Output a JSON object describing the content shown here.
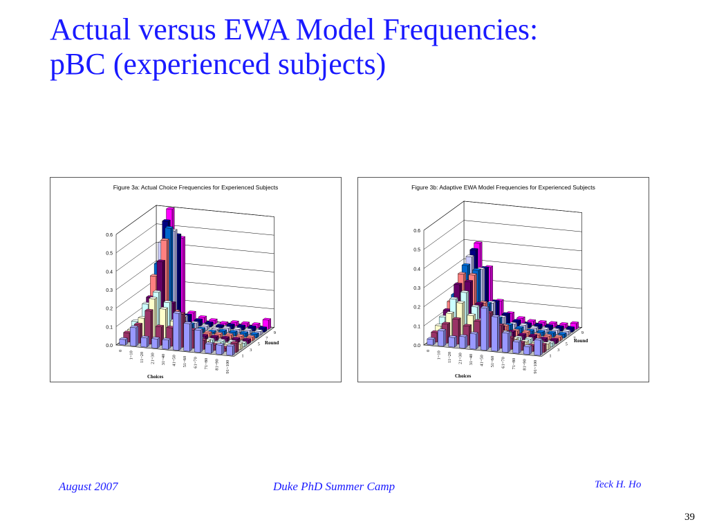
{
  "slide": {
    "title_line1": "Actual versus EWA Model Frequencies:",
    "title_line2": "pBC (experienced subjects)",
    "footer_left": "August 2007",
    "footer_center": "Duke PhD Summer Camp",
    "footer_right": "Teck H. Ho",
    "page_number": "39"
  },
  "chart_data": [
    {
      "type": "bar3d",
      "title": "Figure 3a: Actual Choice Frequencies for Experienced Subjects",
      "xlabel": "Choices",
      "ylabel": "Round",
      "categories": [
        "0",
        "1~10",
        "11~20",
        "21~30",
        "31~40",
        "41~50",
        "51~60",
        "61~70",
        "71~80",
        "81~90",
        "91~100"
      ],
      "rounds": [
        "1",
        "2",
        "3",
        "4",
        "5",
        "6",
        "7",
        "8",
        "9",
        "10"
      ],
      "round_tick_labels": [
        "1",
        "3",
        "5",
        "7",
        "9"
      ],
      "zlim": [
        0,
        0.6
      ],
      "z_ticks": [
        "0.0",
        "0.1",
        "0.2",
        "0.3",
        "0.4",
        "0.5",
        "0.6"
      ],
      "values": [
        [
          0.03,
          0.1,
          0.05,
          0.05,
          0.05,
          0.2,
          0.15,
          0.12,
          0.05,
          0.05,
          0.05
        ],
        [
          0.05,
          0.1,
          0.18,
          0.1,
          0.1,
          0.18,
          0.1,
          0.05,
          0.03,
          0.02,
          0.05
        ],
        [
          0.05,
          0.12,
          0.23,
          0.18,
          0.12,
          0.1,
          0.05,
          0.03,
          0.02,
          0.02,
          0.03
        ],
        [
          0.08,
          0.18,
          0.25,
          0.2,
          0.1,
          0.05,
          0.02,
          0.02,
          0.02,
          0.02,
          0.02
        ],
        [
          0.05,
          0.2,
          0.4,
          0.18,
          0.08,
          0.03,
          0.02,
          0.02,
          0.02,
          0.02,
          0.02
        ],
        [
          0.05,
          0.3,
          0.5,
          0.12,
          0.06,
          0.02,
          0.02,
          0.02,
          0.02,
          0.02,
          0.02
        ],
        [
          0.05,
          0.35,
          0.55,
          0.08,
          0.04,
          0.02,
          0.01,
          0.02,
          0.02,
          0.02,
          0.02
        ],
        [
          0.05,
          0.45,
          0.52,
          0.06,
          0.03,
          0.02,
          0.01,
          0.02,
          0.02,
          0.02,
          0.02
        ],
        [
          0.05,
          0.55,
          0.48,
          0.05,
          0.03,
          0.02,
          0.01,
          0.02,
          0.02,
          0.02,
          0.02
        ],
        [
          0.08,
          0.6,
          0.45,
          0.05,
          0.03,
          0.02,
          0.01,
          0.02,
          0.02,
          0.02,
          0.05
        ]
      ]
    },
    {
      "type": "bar3d",
      "title": "Figure 3b: Adaptive EWA Model Frequencies for Experienced Subjects",
      "xlabel": "Choices",
      "ylabel": "Round",
      "categories": [
        "0",
        "1~10",
        "11~20",
        "21~30",
        "31~40",
        "41~50",
        "51~60",
        "61~70",
        "71~80",
        "81~90",
        "91~100"
      ],
      "rounds": [
        "1",
        "2",
        "3",
        "4",
        "5",
        "6",
        "7",
        "8",
        "9",
        "10"
      ],
      "round_tick_labels": [
        "1",
        "3",
        "5",
        "7",
        "9"
      ],
      "zlim": [
        0,
        0.6
      ],
      "z_ticks": [
        "0.0",
        "0.1",
        "0.2",
        "0.3",
        "0.4",
        "0.5",
        "0.6"
      ],
      "values": [
        [
          0.03,
          0.08,
          0.05,
          0.06,
          0.08,
          0.22,
          0.18,
          0.1,
          0.06,
          0.04,
          0.08
        ],
        [
          0.05,
          0.1,
          0.13,
          0.1,
          0.13,
          0.18,
          0.12,
          0.06,
          0.04,
          0.03,
          0.04
        ],
        [
          0.07,
          0.14,
          0.2,
          0.14,
          0.12,
          0.12,
          0.07,
          0.04,
          0.03,
          0.03,
          0.03
        ],
        [
          0.1,
          0.2,
          0.24,
          0.17,
          0.12,
          0.08,
          0.05,
          0.03,
          0.03,
          0.02,
          0.02
        ],
        [
          0.12,
          0.26,
          0.28,
          0.17,
          0.1,
          0.06,
          0.04,
          0.03,
          0.03,
          0.02,
          0.02
        ],
        [
          0.15,
          0.3,
          0.3,
          0.16,
          0.08,
          0.05,
          0.03,
          0.03,
          0.02,
          0.02,
          0.02
        ],
        [
          0.17,
          0.33,
          0.31,
          0.14,
          0.07,
          0.04,
          0.03,
          0.02,
          0.02,
          0.02,
          0.02
        ],
        [
          0.19,
          0.36,
          0.3,
          0.13,
          0.06,
          0.03,
          0.03,
          0.02,
          0.02,
          0.02,
          0.02
        ],
        [
          0.21,
          0.38,
          0.29,
          0.12,
          0.06,
          0.03,
          0.02,
          0.02,
          0.02,
          0.02,
          0.02
        ],
        [
          0.22,
          0.4,
          0.28,
          0.11,
          0.05,
          0.03,
          0.02,
          0.02,
          0.02,
          0.02,
          0.03
        ]
      ]
    }
  ],
  "colors": {
    "title": "#1a1aff",
    "round_colors": [
      "#9999ff",
      "#993366",
      "#ffffcc",
      "#ccffff",
      "#660066",
      "#ff8080",
      "#0066cc",
      "#ccccff",
      "#000080",
      "#ff00ff"
    ]
  }
}
